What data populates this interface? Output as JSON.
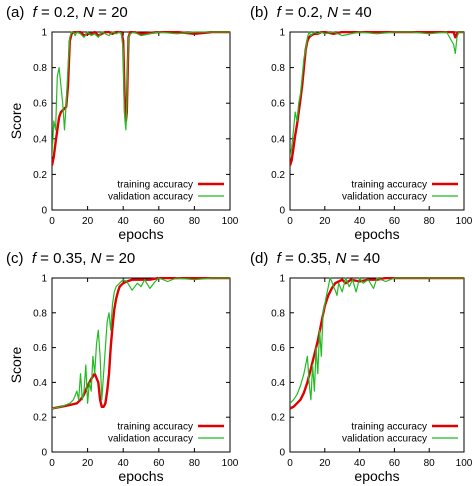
{
  "colors": {
    "training": "#e00000",
    "validation": "#22bb22",
    "axis": "#000000"
  },
  "chart_data": [
    {
      "type": "line",
      "panel": "(a)",
      "title_parts": [
        "(a)  ",
        "f",
        " = 0.2, ",
        "N",
        " = 20"
      ],
      "xlabel": "epochs",
      "ylabel": "Score",
      "xlim": [
        0,
        100
      ],
      "ylim": [
        0,
        1
      ],
      "xticks": [
        0,
        20,
        40,
        60,
        80,
        100
      ],
      "yticks": [
        0,
        0.2,
        0.4,
        0.6,
        0.8,
        1
      ],
      "ytick_labels": [
        "0",
        "0.2",
        "0.4",
        "0.6",
        "0.8",
        "1"
      ],
      "legend_position": "bottom-right",
      "series": [
        {
          "name": "training accuracy",
          "color": "#e00000",
          "x": [
            0,
            1,
            2,
            3,
            4,
            5,
            6,
            7,
            8,
            9,
            10,
            11,
            12,
            13,
            14,
            16,
            18,
            20,
            22,
            24,
            26,
            28,
            30,
            32,
            34,
            36,
            38,
            39,
            40,
            40.5,
            41,
            41.5,
            42,
            42.5,
            43,
            44,
            46,
            50,
            60,
            70,
            80,
            90,
            100
          ],
          "y": [
            0.25,
            0.3,
            0.38,
            0.45,
            0.52,
            0.55,
            0.56,
            0.57,
            0.58,
            0.7,
            0.95,
            0.99,
            1,
            1,
            1,
            1,
            0.98,
            0.99,
            0.99,
            1,
            0.98,
            0.99,
            1,
            1,
            0.99,
            1,
            1,
            1,
            0.95,
            0.75,
            0.55,
            0.5,
            0.55,
            0.75,
            0.97,
            1,
            1,
            0.99,
            1,
            1,
            0.99,
            1,
            1
          ]
        },
        {
          "name": "validation accuracy",
          "color": "#22bb22",
          "x": [
            0,
            1,
            2,
            3,
            4,
            5,
            6,
            7,
            8,
            9,
            10,
            11,
            12,
            13,
            14,
            16,
            18,
            20,
            22,
            24,
            26,
            28,
            30,
            32,
            34,
            36,
            38,
            39,
            40,
            40.5,
            41,
            41.5,
            42,
            42.5,
            43,
            44,
            46,
            50,
            60,
            70,
            80,
            90,
            100
          ],
          "y": [
            0.3,
            0.5,
            0.45,
            0.75,
            0.8,
            0.7,
            0.6,
            0.45,
            0.6,
            0.8,
            0.97,
            1,
            1,
            0.98,
            1,
            0.99,
            0.97,
            1,
            0.98,
            0.99,
            0.97,
            1,
            0.99,
            0.98,
            1,
            0.99,
            1,
            0.99,
            0.9,
            0.6,
            0.5,
            0.45,
            0.6,
            0.8,
            0.97,
            0.99,
            1,
            0.98,
            1,
            0.99,
            1,
            1,
            1
          ]
        }
      ]
    },
    {
      "type": "line",
      "panel": "(b)",
      "title_parts": [
        "(b)  ",
        "f",
        " = 0.2, ",
        "N",
        " = 40"
      ],
      "xlabel": "epochs",
      "ylabel": "",
      "xlim": [
        0,
        100
      ],
      "ylim": [
        0,
        1
      ],
      "xticks": [
        0,
        20,
        40,
        60,
        80,
        100
      ],
      "yticks": [
        0,
        0.2,
        0.4,
        0.6,
        0.8,
        1
      ],
      "ytick_labels": [
        "0",
        "0.2",
        "0.4",
        "0.6",
        "0.8",
        "1"
      ],
      "legend_position": "bottom-right",
      "series": [
        {
          "name": "training accuracy",
          "color": "#e00000",
          "x": [
            0,
            1,
            2,
            3,
            4,
            5,
            6,
            7,
            8,
            9,
            10,
            11,
            12,
            14,
            16,
            18,
            20,
            25,
            30,
            40,
            50,
            60,
            70,
            80,
            90,
            94,
            95,
            96,
            97,
            100
          ],
          "y": [
            0.25,
            0.28,
            0.35,
            0.42,
            0.48,
            0.55,
            0.62,
            0.7,
            0.8,
            0.9,
            0.95,
            0.97,
            0.98,
            0.99,
            0.99,
            1,
            1,
            0.99,
            1,
            1,
            1,
            1,
            1,
            1,
            1,
            1,
            0.97,
            0.99,
            1,
            1
          ]
        },
        {
          "name": "validation accuracy",
          "color": "#22bb22",
          "x": [
            0,
            1,
            2,
            3,
            4,
            5,
            6,
            7,
            8,
            9,
            10,
            11,
            12,
            14,
            16,
            18,
            20,
            25,
            30,
            40,
            50,
            60,
            70,
            80,
            90,
            94,
            95,
            96,
            97,
            100
          ],
          "y": [
            0.3,
            0.35,
            0.45,
            0.55,
            0.5,
            0.6,
            0.65,
            0.75,
            0.85,
            0.9,
            0.97,
            1,
            0.98,
            1,
            0.99,
            1,
            0.99,
            1,
            0.98,
            1,
            0.99,
            1,
            1,
            0.99,
            1,
            0.93,
            0.88,
            0.97,
            1,
            1
          ]
        }
      ]
    },
    {
      "type": "line",
      "panel": "(c)",
      "title_parts": [
        "(c)  ",
        "f",
        " = 0.35, ",
        "N",
        " = 20"
      ],
      "xlabel": "epochs",
      "ylabel": "Score",
      "xlim": [
        0,
        100
      ],
      "ylim": [
        0,
        1
      ],
      "xticks": [
        0,
        20,
        40,
        60,
        80,
        100
      ],
      "yticks": [
        0,
        0.2,
        0.4,
        0.6,
        0.8,
        1
      ],
      "ytick_labels": [
        "0",
        "0.2",
        "0.4",
        "0.6",
        "0.8",
        "1"
      ],
      "legend_position": "bottom-right",
      "series": [
        {
          "name": "training accuracy",
          "color": "#e00000",
          "x": [
            0,
            5,
            10,
            14,
            16,
            18,
            20,
            22,
            24,
            26,
            27,
            28,
            29,
            30,
            31,
            32,
            33,
            34,
            35,
            36,
            37,
            38,
            40,
            42,
            45,
            50,
            55,
            60,
            70,
            80,
            90,
            100
          ],
          "y": [
            0.25,
            0.26,
            0.27,
            0.28,
            0.3,
            0.33,
            0.38,
            0.42,
            0.45,
            0.4,
            0.3,
            0.26,
            0.26,
            0.28,
            0.35,
            0.45,
            0.6,
            0.72,
            0.82,
            0.88,
            0.92,
            0.95,
            0.97,
            0.98,
            0.99,
            0.99,
            0.99,
            1,
            1,
            1,
            1,
            1
          ]
        },
        {
          "name": "validation accuracy",
          "color": "#22bb22",
          "x": [
            0,
            5,
            10,
            12,
            14,
            15,
            16,
            17,
            18,
            19,
            20,
            21,
            22,
            23,
            24,
            25,
            26,
            27,
            28,
            29,
            30,
            31,
            32,
            33,
            34,
            35,
            36,
            38,
            40,
            42,
            45,
            48,
            50,
            52,
            55,
            58,
            60,
            65,
            70,
            80,
            90,
            100
          ],
          "y": [
            0.25,
            0.26,
            0.28,
            0.3,
            0.35,
            0.3,
            0.45,
            0.3,
            0.35,
            0.5,
            0.28,
            0.4,
            0.35,
            0.55,
            0.45,
            0.62,
            0.7,
            0.55,
            0.3,
            0.45,
            0.6,
            0.75,
            0.8,
            0.7,
            0.85,
            0.92,
            0.95,
            0.97,
            0.99,
            0.98,
            0.93,
            0.97,
            0.95,
            0.99,
            0.94,
            0.98,
            1,
            0.98,
            1,
            0.99,
            1,
            1
          ]
        }
      ]
    },
    {
      "type": "line",
      "panel": "(d)",
      "title_parts": [
        "(d)  ",
        "f",
        " = 0.35, ",
        "N",
        " = 40"
      ],
      "xlabel": "epochs",
      "ylabel": "",
      "xlim": [
        0,
        100
      ],
      "ylim": [
        0,
        1
      ],
      "xticks": [
        0,
        20,
        40,
        60,
        80,
        100
      ],
      "yticks": [
        0,
        0.2,
        0.4,
        0.6,
        0.8,
        1
      ],
      "ytick_labels": [
        "0",
        "0.2",
        "0.4",
        "0.6",
        "0.8",
        "1"
      ],
      "legend_position": "bottom-right",
      "series": [
        {
          "name": "training accuracy",
          "color": "#e00000",
          "x": [
            0,
            2,
            4,
            6,
            8,
            10,
            12,
            14,
            16,
            18,
            20,
            22,
            24,
            26,
            28,
            30,
            32,
            35,
            40,
            45,
            50,
            55,
            60,
            70,
            80,
            90,
            100
          ],
          "y": [
            0.25,
            0.26,
            0.28,
            0.3,
            0.34,
            0.4,
            0.48,
            0.56,
            0.64,
            0.74,
            0.84,
            0.9,
            0.94,
            0.97,
            0.98,
            0.99,
            0.97,
            0.99,
            0.98,
            0.99,
            0.99,
            1,
            1,
            1,
            1,
            1,
            1
          ]
        },
        {
          "name": "validation accuracy",
          "color": "#22bb22",
          "x": [
            0,
            2,
            4,
            6,
            8,
            10,
            11,
            12,
            13,
            14,
            15,
            16,
            17,
            18,
            19,
            20,
            21,
            22,
            23,
            24,
            25,
            26,
            27,
            28,
            30,
            32,
            34,
            36,
            38,
            40,
            42,
            45,
            48,
            50,
            55,
            60,
            70,
            80,
            90,
            100
          ],
          "y": [
            0.28,
            0.3,
            0.33,
            0.38,
            0.45,
            0.55,
            0.4,
            0.3,
            0.5,
            0.35,
            0.6,
            0.45,
            0.7,
            0.55,
            0.8,
            0.85,
            0.9,
            0.95,
            1,
            0.98,
            0.95,
            0.93,
            0.9,
            0.97,
            0.92,
            1,
            0.95,
            0.99,
            0.92,
            1,
            0.97,
            0.99,
            0.94,
            1,
            0.98,
            1,
            1,
            1,
            1,
            1
          ]
        }
      ]
    }
  ]
}
